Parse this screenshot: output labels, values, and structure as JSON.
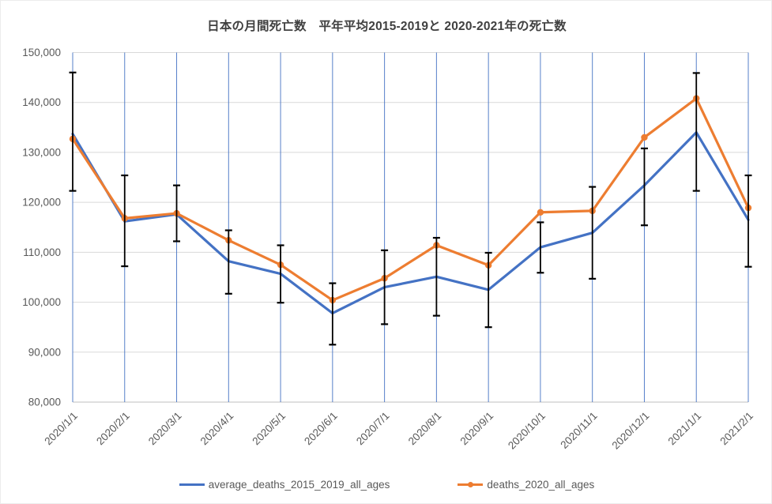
{
  "title": "日本の月間死亡数　平年平均2015-2019と 2020-2021年の死亡数",
  "colors": {
    "series_average": "#4472C4",
    "series_2020": "#ED7D31",
    "error_bar": "#000000",
    "h_gridline": "#D9D9D9",
    "v_gridline": "#4472C4",
    "axis_line": "#BFBFBF",
    "tick_text": "#595959",
    "title_text": "#404040"
  },
  "chart_data": {
    "type": "line",
    "title": "日本の月間死亡数　平年平均2015-2019と 2020-2021年の死亡数",
    "xlabel": "",
    "ylabel": "",
    "ylim": [
      80000,
      150000
    ],
    "ytick_step": 10000,
    "ytick_labels": [
      "80,000",
      "90,000",
      "100,000",
      "110,000",
      "120,000",
      "130,000",
      "140,000",
      "150,000"
    ],
    "grid": {
      "horizontal": true,
      "vertical": true
    },
    "legend_position": "bottom",
    "categories": [
      "2020/1/1",
      "2020/2/1",
      "2020/3/1",
      "2020/4/1",
      "2020/5/1",
      "2020/6/1",
      "2020/7/1",
      "2020/8/1",
      "2020/9/1",
      "2020/10/1",
      "2020/11/1",
      "2020/12/1",
      "2021/1/1",
      "2021/2/1"
    ],
    "series": [
      {
        "name": "average_deaths_2015_2019_all_ages",
        "color": "#4472C4",
        "marker": "none",
        "values": [
          133700,
          116200,
          117600,
          108200,
          105700,
          97800,
          103000,
          105100,
          102500,
          111000,
          113900,
          123400,
          134000,
          116500
        ]
      },
      {
        "name": "deaths_2020_all_ages",
        "color": "#ED7D31",
        "marker": "circle",
        "values": [
          132700,
          116800,
          117800,
          112400,
          107500,
          100400,
          104800,
          111400,
          107400,
          118000,
          118300,
          133000,
          140800,
          118900
        ]
      }
    ],
    "error_bars": {
      "attached_to": "average_deaths_2015_2019_all_ages",
      "color": "#000000",
      "upper": [
        146000,
        125400,
        123400,
        114400,
        111400,
        103800,
        110400,
        112900,
        109900,
        116000,
        123100,
        130800,
        145900,
        125400
      ],
      "lower": [
        122300,
        107200,
        112200,
        101700,
        99900,
        91500,
        95600,
        97300,
        95000,
        105900,
        104700,
        115400,
        122300,
        107100
      ]
    }
  },
  "legend": {
    "items": [
      {
        "label": "average_deaths_2015_2019_all_ages"
      },
      {
        "label": "deaths_2020_all_ages"
      }
    ]
  }
}
